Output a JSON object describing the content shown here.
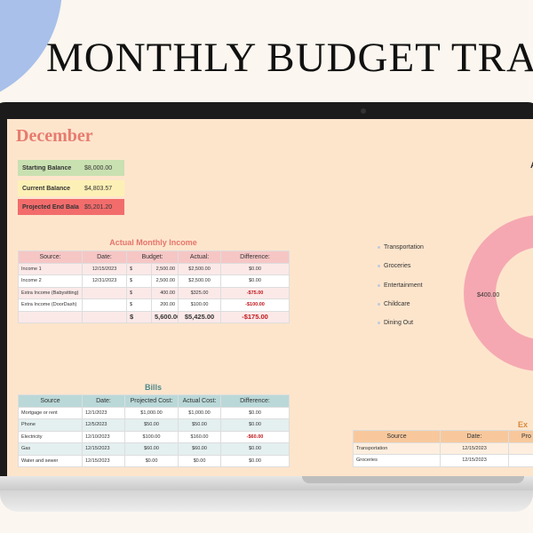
{
  "header": {
    "title": "MONTHLY BUDGET TRA"
  },
  "sheet": {
    "month": "December",
    "summary": [
      {
        "label": "Starting Balance",
        "value": "$8,000.00"
      },
      {
        "label": "Current Balance",
        "value": "$4,803.57"
      },
      {
        "label": "Projected End Bala",
        "value": "$5,201.20"
      }
    ],
    "income": {
      "title": "Actual Monthly Income",
      "columns": [
        "Source:",
        "Date:",
        "Budget:",
        "Actual:",
        "Difference:"
      ],
      "rows": [
        [
          "Income 1",
          "12/15/2023",
          "$",
          "2,500.00",
          "$2,500.00",
          "$0.00"
        ],
        [
          "Income 2",
          "12/31/2023",
          "$",
          "2,500.00",
          "$2,500.00",
          "$0.00"
        ],
        [
          "Extra Income (Babysitting)",
          null,
          "$",
          "400.00",
          "$325.00",
          "-$75.00"
        ],
        [
          "Extra Income (DoorDash)",
          null,
          "$",
          "200.00",
          "$100.00",
          "-$100.00"
        ]
      ],
      "total": [
        null,
        null,
        "$",
        "5,600.00",
        "$5,425.00",
        "-$175.00"
      ]
    },
    "legend": [
      "Transportation",
      "Groceries",
      "Entertainment",
      "Childcare",
      "Dining Out"
    ],
    "donut": {
      "title": "A",
      "label": "$400.00"
    },
    "bills": {
      "title": "Bills",
      "columns": [
        "Source",
        "Date:",
        "Projected Cost:",
        "Actual Cost:",
        "Difference:"
      ],
      "rows": [
        [
          "Mortgage or rent",
          "12/1/2023",
          "$1,000.00",
          "$1,000.00",
          "$0.00"
        ],
        [
          "Phone",
          "12/5/2023",
          "$50.00",
          "$50.00",
          "$0.00"
        ],
        [
          "Electricity",
          "12/10/2023",
          "$100.00",
          "$160.00",
          "-$60.00"
        ],
        [
          "Gas",
          "12/15/2023",
          "$60.00",
          "$60.00",
          "$0.00"
        ],
        [
          "Water and sewer",
          "12/15/2023",
          "$0.00",
          "$0.00",
          "$0.00"
        ]
      ]
    },
    "expenses": {
      "title": "Ex",
      "columns": [
        "Source",
        "Date:",
        "Pro"
      ],
      "rows": [
        [
          "Transportation",
          "12/15/2023",
          null
        ],
        [
          "Groceries",
          "12/15/2023",
          null
        ]
      ]
    }
  }
}
